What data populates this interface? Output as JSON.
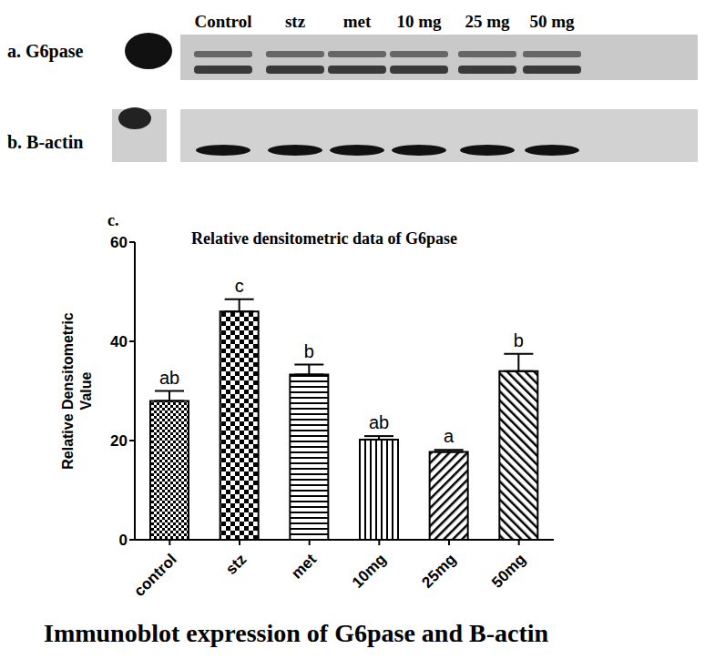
{
  "blot": {
    "lanes": [
      "Control",
      "stz",
      "met",
      "10 mg",
      "25 mg",
      "50 mg"
    ],
    "rows": [
      "a. G6pase",
      "b. B-actin"
    ]
  },
  "panel_label": "c.",
  "caption": "Immunoblot expression of G6pase and B-actin",
  "chart_data": {
    "type": "bar",
    "title": "Relative densitometric data of G6pase",
    "y_label": "Relative Densitometric Value",
    "categories": [
      "control",
      "stz",
      "met",
      "10mg",
      "25mg",
      "50mg"
    ],
    "values": [
      28,
      46,
      33.3,
      20.2,
      17.7,
      34
    ],
    "errors": [
      2,
      2.5,
      2,
      0.7,
      0.4,
      3.5
    ],
    "annotations": [
      "ab",
      "c",
      "b",
      "ab",
      "a",
      "b"
    ],
    "color": "#000000",
    "ylim": [
      0,
      60
    ],
    "yticks": [
      0,
      20,
      40,
      60
    ],
    "grid": false
  }
}
